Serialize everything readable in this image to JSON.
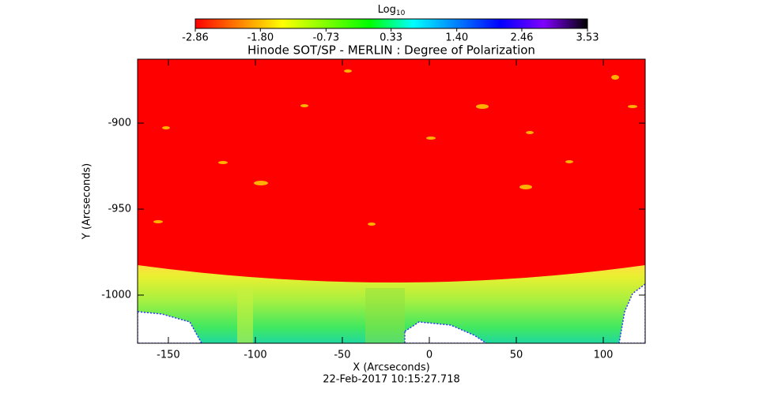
{
  "chart_data": {
    "type": "heatmap",
    "title": "Hinode SOT/SP - MERLIN : Degree of Polarization",
    "x_label": "X (Arcseconds)",
    "y_label": "Y (Arcseconds)",
    "footer": "22-Feb-2017 10:15:27.718",
    "xlim": [
      -167.7,
      124.1
    ],
    "xticks": [
      -150,
      -100,
      -50,
      0,
      50,
      100
    ],
    "ylim": [
      -1028,
      -862.8
    ],
    "yticks": [
      -1000,
      -950,
      -900
    ],
    "colorbar": {
      "label": "Log",
      "label_sub": "10",
      "lim": [
        -2.86,
        3.53
      ],
      "ticks": [
        {
          "value": -2.86,
          "label": "-2.86"
        },
        {
          "value": -1.8,
          "label": "-1.80"
        },
        {
          "value": -0.73,
          "label": "-0.73"
        },
        {
          "value": 0.33,
          "label": "0.33"
        },
        {
          "value": 1.4,
          "label": "1.40"
        },
        {
          "value": 2.46,
          "label": "2.46"
        },
        {
          "value": 3.53,
          "label": "3.53"
        }
      ],
      "colormap": [
        "#ff0000",
        "#ff8000",
        "#ffff00",
        "#80ff00",
        "#00ff00",
        "#00ffff",
        "#0080ff",
        "#0000ff",
        "#8000ff",
        "#000000"
      ]
    }
  }
}
